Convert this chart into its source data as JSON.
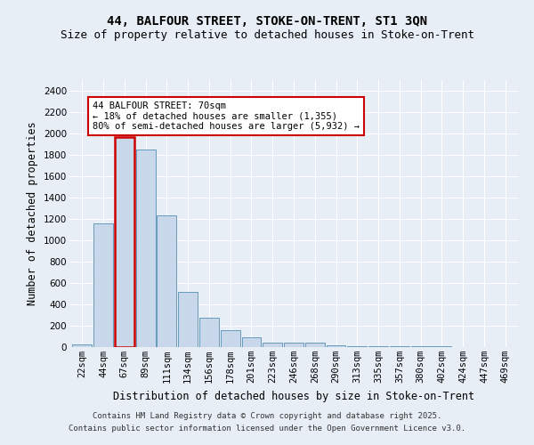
{
  "title1": "44, BALFOUR STREET, STOKE-ON-TRENT, ST1 3QN",
  "title2": "Size of property relative to detached houses in Stoke-on-Trent",
  "xlabel": "Distribution of detached houses by size in Stoke-on-Trent",
  "ylabel": "Number of detached properties",
  "categories": [
    "22sqm",
    "44sqm",
    "67sqm",
    "89sqm",
    "111sqm",
    "134sqm",
    "156sqm",
    "178sqm",
    "201sqm",
    "223sqm",
    "246sqm",
    "268sqm",
    "290sqm",
    "313sqm",
    "335sqm",
    "357sqm",
    "380sqm",
    "402sqm",
    "424sqm",
    "447sqm",
    "469sqm"
  ],
  "values": [
    25,
    1155,
    1970,
    1850,
    1230,
    520,
    275,
    155,
    95,
    45,
    40,
    40,
    20,
    12,
    6,
    5,
    5,
    5,
    3,
    3,
    3
  ],
  "highlighted_bin_index": 2,
  "bar_color": "#c8d8ea",
  "bar_edge_color": "#6699bb",
  "highlight_edge_color": "#cc0000",
  "highlight_linewidth": 1.8,
  "annotation_text": "44 BALFOUR STREET: 70sqm\n← 18% of detached houses are smaller (1,355)\n80% of semi-detached houses are larger (5,932) →",
  "annotation_box_color": "white",
  "annotation_box_edge": "#cc0000",
  "footnote1": "Contains HM Land Registry data © Crown copyright and database right 2025.",
  "footnote2": "Contains public sector information licensed under the Open Government Licence v3.0.",
  "ylim": [
    0,
    2500
  ],
  "yticks": [
    0,
    200,
    400,
    600,
    800,
    1000,
    1200,
    1400,
    1600,
    1800,
    2000,
    2200,
    2400
  ],
  "background_color": "#e8eef6",
  "plot_bg_color": "#e8eef6",
  "grid_color": "white",
  "title1_fontsize": 10,
  "title2_fontsize": 9,
  "xlabel_fontsize": 8.5,
  "ylabel_fontsize": 8.5,
  "tick_fontsize": 7.5,
  "annotation_fontsize": 7.5,
  "footnote_fontsize": 6.5
}
